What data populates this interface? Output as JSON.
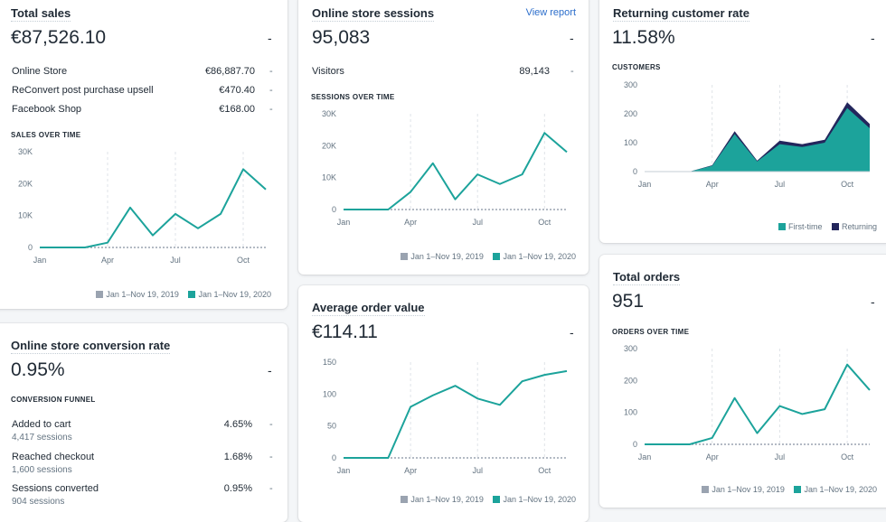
{
  "colors": {
    "teal": "#1ca39b",
    "navy": "#23265c",
    "gray": "#9aa3b0",
    "grid": "#dfe3e8"
  },
  "total_sales": {
    "title": "Total sales",
    "value": "€87,526.10",
    "dash": "-",
    "rows": [
      {
        "label": "Online Store",
        "value": "€86,887.70",
        "dash": "-"
      },
      {
        "label": "ReConvert post purchase upsell",
        "value": "€470.40",
        "dash": "-"
      },
      {
        "label": "Facebook Shop",
        "value": "€168.00",
        "dash": "-"
      }
    ],
    "section": "SALES OVER TIME",
    "legend": [
      "Jan 1–Nov 19, 2019",
      "Jan 1–Nov 19, 2020"
    ]
  },
  "sessions": {
    "title": "Online store sessions",
    "link": "View report",
    "value": "95,083",
    "dash": "-",
    "rows": [
      {
        "label": "Visitors",
        "value": "89,143",
        "dash": "-"
      }
    ],
    "section": "SESSIONS OVER TIME",
    "legend": [
      "Jan 1–Nov 19, 2019",
      "Jan 1–Nov 19, 2020"
    ]
  },
  "returning": {
    "title": "Returning customer rate",
    "value": "11.58%",
    "dash": "-",
    "section": "CUSTOMERS",
    "legend": [
      "First-time",
      "Returning"
    ]
  },
  "conversion": {
    "title": "Online store conversion rate",
    "value": "0.95%",
    "dash": "-",
    "section": "CONVERSION FUNNEL",
    "rows": [
      {
        "label": "Added to cart",
        "sub": "4,417 sessions",
        "value": "4.65%",
        "dash": "-"
      },
      {
        "label": "Reached checkout",
        "sub": "1,600 sessions",
        "value": "1.68%",
        "dash": "-"
      },
      {
        "label": "Sessions converted",
        "sub": "904 sessions",
        "value": "0.95%",
        "dash": "-"
      }
    ]
  },
  "aov": {
    "title": "Average order value",
    "value": "€114.11",
    "dash": "-",
    "legend": [
      "Jan 1–Nov 19, 2019",
      "Jan 1–Nov 19, 2020"
    ]
  },
  "orders": {
    "title": "Total orders",
    "value": "951",
    "dash": "-",
    "section": "ORDERS OVER TIME",
    "legend": [
      "Jan 1–Nov 19, 2019",
      "Jan 1–Nov 19, 2020"
    ]
  },
  "chart_data": [
    {
      "id": "sales",
      "type": "line",
      "x": [
        "Jan",
        "Feb",
        "Mar",
        "Apr",
        "May",
        "Jun",
        "Jul",
        "Aug",
        "Sep",
        "Oct",
        "Nov"
      ],
      "xticks": [
        "Jan",
        "Apr",
        "Jul",
        "Oct"
      ],
      "yticks": [
        "0",
        "10K",
        "20K",
        "30K"
      ],
      "ylim": [
        0,
        30000
      ],
      "series": [
        {
          "name": "Jan 1–Nov 19, 2019",
          "values": [
            0,
            0,
            0,
            0,
            0,
            0,
            0,
            0,
            0,
            0,
            0
          ]
        },
        {
          "name": "Jan 1–Nov 19, 2020",
          "values": [
            0,
            0,
            0,
            1500,
            12500,
            3800,
            10500,
            6000,
            10500,
            24500,
            18200
          ]
        }
      ]
    },
    {
      "id": "sessions",
      "type": "line",
      "x": [
        "Jan",
        "Feb",
        "Mar",
        "Apr",
        "May",
        "Jun",
        "Jul",
        "Aug",
        "Sep",
        "Oct",
        "Nov"
      ],
      "xticks": [
        "Jan",
        "Apr",
        "Jul",
        "Oct"
      ],
      "yticks": [
        "0",
        "10K",
        "20K",
        "30K"
      ],
      "ylim": [
        0,
        30000
      ],
      "series": [
        {
          "name": "Jan 1–Nov 19, 2019",
          "values": [
            0,
            0,
            0,
            0,
            0,
            0,
            0,
            0,
            0,
            0,
            0
          ]
        },
        {
          "name": "Jan 1–Nov 19, 2020",
          "values": [
            0,
            0,
            0,
            5500,
            14500,
            3200,
            11000,
            8000,
            11000,
            24000,
            18000
          ]
        }
      ]
    },
    {
      "id": "customers",
      "type": "area",
      "x": [
        "Jan",
        "Feb",
        "Mar",
        "Apr",
        "May",
        "Jun",
        "Jul",
        "Aug",
        "Sep",
        "Oct",
        "Nov"
      ],
      "xticks": [
        "Jan",
        "Apr",
        "Jul",
        "Oct"
      ],
      "yticks": [
        "0",
        "100",
        "200",
        "300"
      ],
      "ylim": [
        0,
        300
      ],
      "series": [
        {
          "name": "First-time",
          "values": [
            0,
            0,
            0,
            20,
            130,
            35,
            95,
            85,
            100,
            220,
            150
          ]
        },
        {
          "name": "Returning",
          "values": [
            0,
            0,
            0,
            2,
            10,
            3,
            12,
            10,
            10,
            20,
            15
          ]
        }
      ]
    },
    {
      "id": "aov",
      "type": "line",
      "x": [
        "Jan",
        "Feb",
        "Mar",
        "Apr",
        "May",
        "Jun",
        "Jul",
        "Aug",
        "Sep",
        "Oct",
        "Nov"
      ],
      "xticks": [
        "Jan",
        "Apr",
        "Jul",
        "Oct"
      ],
      "yticks": [
        "0",
        "50",
        "100",
        "150"
      ],
      "ylim": [
        0,
        150
      ],
      "series": [
        {
          "name": "Jan 1–Nov 19, 2019",
          "values": [
            0,
            0,
            0,
            0,
            0,
            0,
            0,
            0,
            0,
            0,
            0
          ]
        },
        {
          "name": "Jan 1–Nov 19, 2020",
          "values": [
            0,
            0,
            0,
            80,
            98,
            113,
            93,
            83,
            120,
            130,
            136
          ]
        }
      ]
    },
    {
      "id": "orders",
      "type": "line",
      "x": [
        "Jan",
        "Feb",
        "Mar",
        "Apr",
        "May",
        "Jun",
        "Jul",
        "Aug",
        "Sep",
        "Oct",
        "Nov"
      ],
      "xticks": [
        "Jan",
        "Apr",
        "Jul",
        "Oct"
      ],
      "yticks": [
        "0",
        "100",
        "200",
        "300"
      ],
      "ylim": [
        0,
        300
      ],
      "series": [
        {
          "name": "Jan 1–Nov 19, 2019",
          "values": [
            0,
            0,
            0,
            0,
            0,
            0,
            0,
            0,
            0,
            0,
            0
          ]
        },
        {
          "name": "Jan 1–Nov 19, 2020",
          "values": [
            0,
            0,
            0,
            20,
            145,
            35,
            120,
            95,
            110,
            250,
            170
          ]
        }
      ]
    }
  ]
}
